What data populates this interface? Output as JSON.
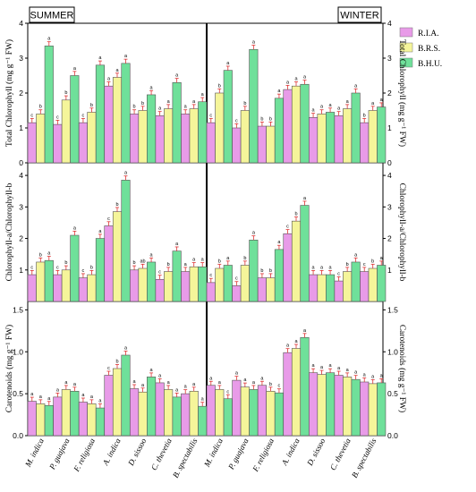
{
  "chart_data": {
    "type": "bar",
    "categories": [
      "M. indica",
      "P. guajava",
      "F. religiosa",
      "A. indica",
      "D. sissoo",
      "C. thevetia",
      "B. spectabilis"
    ],
    "seasons": [
      "SUMMER",
      "WINTER"
    ],
    "legend": [
      "R.I.A.",
      "B.R.S.",
      "B.H.U."
    ],
    "colors": [
      "#e89be8",
      "#f5f59a",
      "#6fe09a"
    ],
    "panels": [
      {
        "ylabel_left": "Total Chlorophyll (mg g⁻¹ FW)",
        "ylabel_right": "Total Chlorophyll (mg g⁻¹ FW)",
        "ylim": [
          0,
          4
        ],
        "ticks_left": [
          "0",
          "1",
          "2",
          "3",
          "4"
        ],
        "ticks_right": [
          "0",
          "1",
          "2",
          "3",
          "4"
        ],
        "summer": [
          [
            1.15,
            1.4,
            3.35
          ],
          [
            1.1,
            1.8,
            2.5
          ],
          [
            1.15,
            1.45,
            2.8
          ],
          [
            2.2,
            2.45,
            2.85
          ],
          [
            1.4,
            1.5,
            1.95
          ],
          [
            1.35,
            1.55,
            2.3
          ],
          [
            1.4,
            1.55,
            1.75
          ]
        ],
        "winter": [
          [
            1.15,
            2.0,
            2.65
          ],
          [
            1.0,
            1.5,
            3.25
          ],
          [
            1.05,
            1.05,
            1.85
          ],
          [
            2.1,
            2.2,
            2.25
          ],
          [
            1.3,
            1.4,
            1.45
          ],
          [
            1.35,
            1.55,
            2.0
          ],
          [
            1.15,
            1.5,
            1.6
          ]
        ],
        "sig_summer": [
          [
            "c",
            "b",
            "a"
          ],
          [
            "c",
            "b",
            "a"
          ],
          [
            "c",
            "b",
            "a"
          ],
          [
            "a",
            "a",
            "a"
          ],
          [
            "b",
            "b",
            "a"
          ],
          [
            "a",
            "a",
            "a"
          ],
          [
            "a",
            "a",
            "a"
          ]
        ],
        "sig_winter": [
          [
            "c",
            "b",
            "a"
          ],
          [
            "c",
            "b",
            "a"
          ],
          [
            "b",
            "b",
            "a"
          ],
          [
            "a",
            "a",
            "a"
          ],
          [
            "a",
            "a",
            "a"
          ],
          [
            "a",
            "a",
            "a"
          ],
          [
            "b",
            "a",
            "a"
          ]
        ]
      },
      {
        "ylabel_left": "Chlorophyll-a/Chlorophyll-b",
        "ylabel_right": "Chlorophyll-a/Chlorophyll-b",
        "ylim": [
          0,
          4.4
        ],
        "ticks_left": [
          "1",
          "2",
          "3",
          "4"
        ],
        "ticks_right": [
          "1",
          "2",
          "3",
          "4"
        ],
        "summer": [
          [
            0.85,
            1.25,
            1.3
          ],
          [
            0.85,
            1.0,
            2.1
          ],
          [
            0.75,
            0.85,
            2.0
          ],
          [
            2.4,
            2.85,
            3.85
          ],
          [
            1.0,
            1.05,
            1.25
          ],
          [
            0.7,
            0.95,
            1.6
          ],
          [
            0.95,
            1.1,
            1.1
          ]
        ],
        "winter": [
          [
            0.6,
            1.05,
            1.15
          ],
          [
            0.5,
            1.15,
            1.95
          ],
          [
            0.75,
            0.75,
            1.65
          ],
          [
            2.15,
            2.55,
            3.05
          ],
          [
            0.85,
            0.85,
            0.85
          ],
          [
            0.65,
            0.95,
            1.25
          ],
          [
            0.95,
            1.05,
            1.15
          ]
        ],
        "sig_summer": [
          [
            "c",
            "b",
            "a"
          ],
          [
            "c",
            "b",
            "a"
          ],
          [
            "c",
            "b",
            "a"
          ],
          [
            "c",
            "b",
            "a"
          ],
          [
            "b",
            "ab",
            "a"
          ],
          [
            "c",
            "b",
            "a"
          ],
          [
            "a",
            "a",
            "a"
          ]
        ],
        "sig_winter": [
          [
            "c",
            "b",
            "a"
          ],
          [
            "c",
            "b",
            "a"
          ],
          [
            "b",
            "b",
            "a"
          ],
          [
            "c",
            "b",
            "a"
          ],
          [
            "a",
            "a",
            "a"
          ],
          [
            "c",
            "b",
            "a"
          ],
          [
            "c",
            "b",
            "a"
          ]
        ]
      },
      {
        "ylabel_left": "Carotenoids (mg g⁻¹ FW)",
        "ylabel_right": "Carotenoids (mg g⁻¹ FW)",
        "ylim": [
          0,
          1.6
        ],
        "ticks_left": [
          "0.0",
          "0.5",
          "1.0",
          "1.5"
        ],
        "ticks_right": [
          "0.0",
          "0.5",
          "1.0",
          "1.5"
        ],
        "summer": [
          [
            0.41,
            0.38,
            0.36
          ],
          [
            0.46,
            0.55,
            0.53
          ],
          [
            0.4,
            0.38,
            0.33
          ],
          [
            0.72,
            0.8,
            0.96
          ],
          [
            0.56,
            0.52,
            0.7
          ],
          [
            0.63,
            0.55,
            0.46
          ],
          [
            0.5,
            0.53,
            0.35
          ]
        ],
        "winter": [
          [
            0.6,
            0.55,
            0.44
          ],
          [
            0.66,
            0.58,
            0.55
          ],
          [
            0.6,
            0.53,
            0.51
          ],
          [
            0.99,
            1.04,
            1.17
          ],
          [
            0.75,
            0.73,
            0.75
          ],
          [
            0.72,
            0.7,
            0.67
          ],
          [
            0.64,
            0.62,
            0.63
          ]
        ],
        "sig_summer": [
          [
            "a",
            "a",
            "a"
          ],
          [
            "a",
            "a",
            "a"
          ],
          [
            "a",
            "a",
            "a"
          ],
          [
            "c",
            "b",
            "a"
          ],
          [
            "a",
            "a",
            "a"
          ],
          [
            "a",
            "a",
            "a"
          ],
          [
            "a",
            "a",
            "a"
          ]
        ],
        "sig_winter": [
          [
            "a",
            "a",
            "c"
          ],
          [
            "a",
            "a",
            "a"
          ],
          [
            "a",
            "b",
            "c"
          ],
          [
            "a",
            "a",
            "a"
          ],
          [
            "a",
            "a",
            "a"
          ],
          [
            "a",
            "a",
            "a"
          ],
          [
            "a",
            "a",
            "a"
          ]
        ]
      }
    ]
  }
}
